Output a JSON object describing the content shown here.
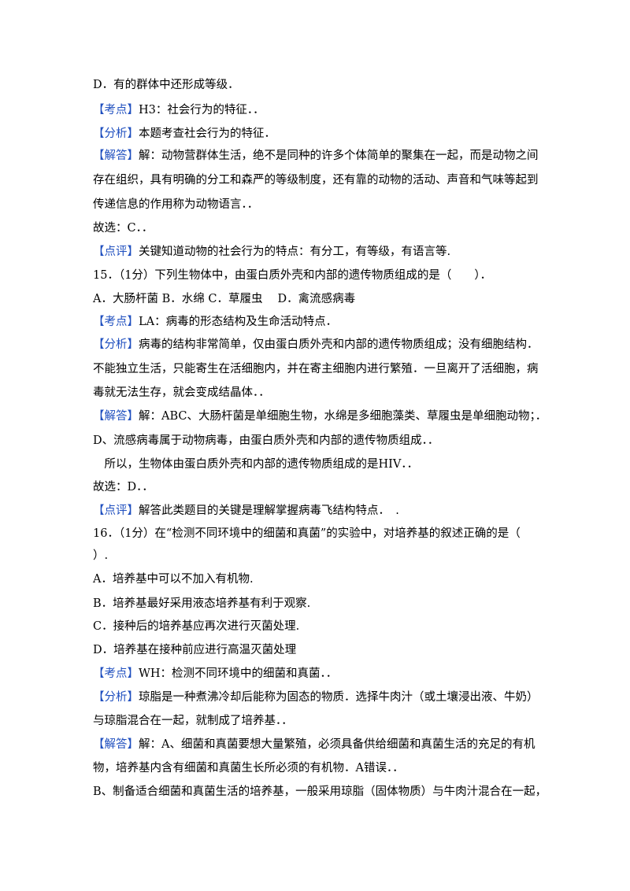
{
  "lines": [
    {
      "text": "D．有的群体中还形成等级．"
    },
    {
      "tag": "【考点】",
      "text": "H3：社会行为的特征．．"
    },
    {
      "tag": "【分析】",
      "text": "本题考查社会行为的特征．"
    },
    {
      "tag": "【解答】",
      "text": "解：动物营群体生活，绝不是同种的许多个体简单的聚集在一起，而是动物之间"
    },
    {
      "text": "存在组织，具有明确的分工和森严的等级制度，还有靠的动物的活动、声音和气味等起到"
    },
    {
      "text": "传递信息的作用称为动物语言．．"
    },
    {
      "text": "故选：C．．"
    },
    {
      "tag": "【点评】",
      "text": "关键知道动物的社会行为的特点：有分工，有等级，有语言等."
    },
    {
      "text": "15．（1分）下列生物体中，由蛋白质外壳和内部的遗传物质组成的是（　　）．"
    },
    {
      "text": "A．大肠杆菌 B．水绵 C．草履虫　 D．禽流感病毒"
    },
    {
      "tag": "【考点】",
      "text": "LA：病毒的形态结构及生命活动特点．"
    },
    {
      "tag": "【分析】",
      "text": "病毒的结构非常简单，仅由蛋白质外壳和内部的遗传物质组成；没有细胞结构．"
    },
    {
      "text": "不能独立生活，只能寄生在活细胞内，并在寄主细胞内进行繁殖．一旦离开了活细胞，病"
    },
    {
      "text": "毒就无法生存，就会变成结晶体．．"
    },
    {
      "tag": "【解答】",
      "text": "解：ABC、大肠杆菌是单细胞生物，水绵是多细胞藻类、草履虫是单细胞动物；．"
    },
    {
      "text": "D、流感病毒属于动物病毒，由蛋白质外壳和内部的遗传物质组成．．"
    },
    {
      "text": "　所以，生物体由蛋白质外壳和内部的遗传物质组成的是HIV．．"
    },
    {
      "text": "故选：D．．"
    },
    {
      "tag": "【点评】",
      "text": "解答此类题目的关键是理解掌握病毒飞结构特点．　."
    },
    {
      "text": "16．（1分）在“检测不同环境中的细菌和真菌”的实验中，对培养基的叙述正确的是（"
    },
    {
      "text": "）."
    },
    {
      "text": "A．培养基中可以不加入有机物."
    },
    {
      "text": "B．培养基最好采用液态培养基有利于观察."
    },
    {
      "text": "C．接种后的培养基应再次进行灭菌处理."
    },
    {
      "text": "D．培养基在接种前应进行高温灭菌处理"
    },
    {
      "tag": "【考点】",
      "text": "WH：检测不同环境中的细菌和真菌．．"
    },
    {
      "tag": "【分析】",
      "text": "琼脂是一种煮沸冷却后能称为固态的物质．选择牛肉汁（或土壤浸出液、牛奶）"
    },
    {
      "text": "与琼脂混合在一起，就制成了培养基．．"
    },
    {
      "tag": "【解答】",
      "text": "解：A、细菌和真菌要想大量繁殖，必须具备供给细菌和真菌生活的充足的有机"
    },
    {
      "text": "物，培养基内含有细菌和真菌生长所必须的有机物．A错误．．"
    },
    {
      "text": "B、制备适合细菌和真菌生活的培养基，一般采用琼脂（固体物质）与牛肉汁混合在一起，"
    }
  ]
}
